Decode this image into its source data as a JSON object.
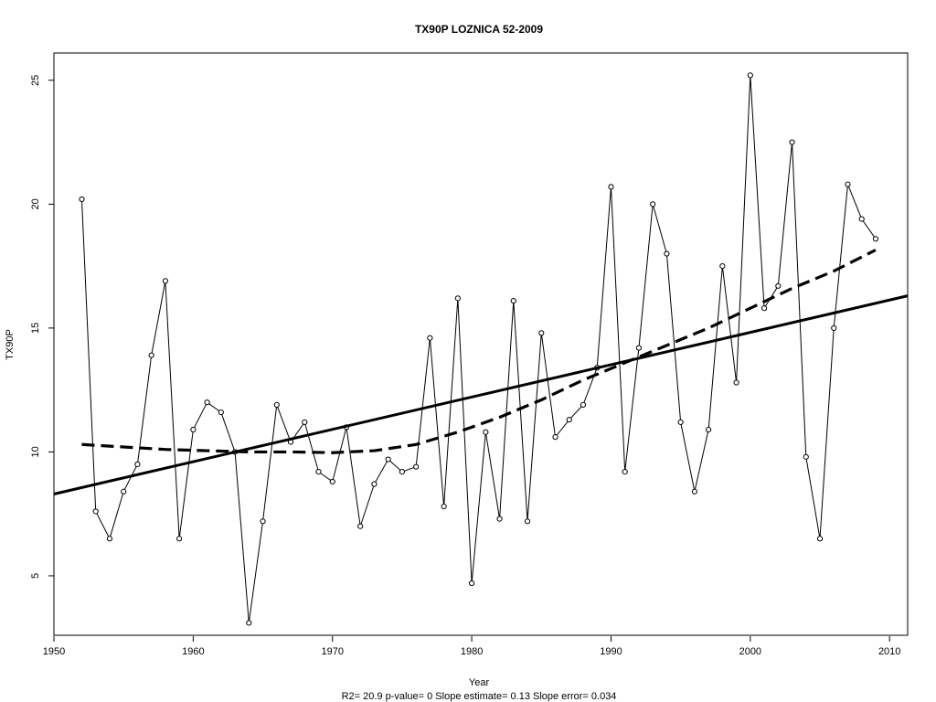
{
  "chart_data": {
    "type": "line",
    "title": "TX90P    LOZNICA 52-2009",
    "xlabel": "Year",
    "ylabel": "TX90P",
    "footnote": "R2= 20.9  p-value= 0  Slope estimate= 0.13  Slope error= 0.034",
    "xlim": [
      1950,
      2011.3
    ],
    "ylim": [
      2.6,
      26.1
    ],
    "xticks": [
      1950,
      1960,
      1970,
      1980,
      1990,
      2000,
      2010
    ],
    "yticks": [
      5,
      10,
      15,
      20,
      25
    ],
    "grid": false,
    "series": [
      {
        "style": "thin line with open circle markers",
        "x": [
          1952,
          1953,
          1954,
          1955,
          1956,
          1957,
          1958,
          1959,
          1960,
          1961,
          1962,
          1963,
          1964,
          1965,
          1966,
          1967,
          1968,
          1969,
          1970,
          1971,
          1972,
          1973,
          1974,
          1975,
          1976,
          1977,
          1978,
          1979,
          1980,
          1981,
          1982,
          1983,
          1984,
          1985,
          1986,
          1987,
          1988,
          1989,
          1990,
          1991,
          1992,
          1993,
          1994,
          1995,
          1996,
          1997,
          1998,
          1999,
          2000,
          2001,
          2002,
          2003,
          2004,
          2005,
          2006,
          2007,
          2008,
          2009
        ],
        "values": [
          20.2,
          7.6,
          6.5,
          8.4,
          9.5,
          13.9,
          16.9,
          6.5,
          10.9,
          12.0,
          11.6,
          10.0,
          3.1,
          7.2,
          11.9,
          10.4,
          11.2,
          9.2,
          8.8,
          11.0,
          7.0,
          8.7,
          9.7,
          9.2,
          9.4,
          14.6,
          7.8,
          16.2,
          4.7,
          10.8,
          7.3,
          16.1,
          7.2,
          14.8,
          10.6,
          11.3,
          11.9,
          13.4,
          20.7,
          9.2,
          14.2,
          20.0,
          18.0,
          11.2,
          8.4,
          10.9,
          17.5,
          12.8,
          25.2,
          15.8,
          16.7,
          22.5,
          9.8,
          6.5,
          15.0,
          20.8,
          19.4,
          18.6
        ]
      },
      {
        "style": "thick solid linear trend",
        "x": [
          1950,
          2011.3
        ],
        "values": [
          8.3,
          16.3
        ]
      },
      {
        "style": "thick dashed smoothed trend",
        "x": [
          1952,
          1955,
          1958,
          1961,
          1964,
          1967,
          1970,
          1973,
          1976,
          1979,
          1982,
          1985,
          1988,
          1991,
          1994,
          1997,
          2000,
          2003,
          2006,
          2009
        ],
        "values": [
          10.3,
          10.2,
          10.1,
          10.05,
          10.0,
          10.0,
          9.97,
          10.05,
          10.3,
          10.8,
          11.4,
          12.1,
          12.9,
          13.6,
          14.3,
          15.0,
          15.8,
          16.6,
          17.3,
          18.15
        ]
      }
    ]
  }
}
